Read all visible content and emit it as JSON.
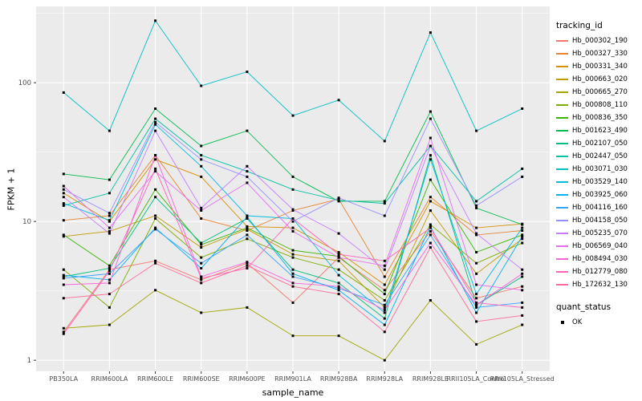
{
  "figure": {
    "ylabel": "FPKM + 1",
    "xlabel": "sample_name",
    "legend_title": "tracking_id",
    "legend2_title": "quant_status",
    "legend2_item": "OK"
  },
  "chart_data": {
    "type": "line",
    "title": "",
    "xlabel": "sample_name",
    "ylabel": "FPKM + 1",
    "y_scale": "log10",
    "y_ticks": [
      1,
      10,
      100
    ],
    "y_tick_labels": [
      "1",
      "10",
      "100"
    ],
    "ylim": [
      0.83,
      355
    ],
    "grid": true,
    "panel_bg": "#EBEBEB",
    "grid_color": "#FFFFFF",
    "point_color": "#000000",
    "point_shape": "square",
    "legend_position": "right",
    "categories": [
      "PB350LA",
      "RRIM600LA",
      "RRIM600LE",
      "RRIM600SE",
      "RRIM600PE",
      "RRIM901LA",
      "RRIM928BA",
      "RRIM928LA",
      "RRIM928LE",
      "RRII105LA_Control",
      "RRII105LA_Stressed"
    ],
    "series": [
      {
        "name": "Hb_000302_190",
        "color": "#F8766D",
        "values": [
          1.6,
          4.5,
          5.2,
          3.8,
          5.0,
          2.6,
          5.5,
          3.2,
          8.5,
          2.8,
          3.4
        ]
      },
      {
        "name": "Hb_000327_330",
        "color": "#EA8331",
        "values": [
          10.2,
          11.0,
          30.0,
          10.5,
          8.6,
          12.0,
          14.5,
          4.0,
          15.0,
          8.0,
          8.6
        ]
      },
      {
        "name": "Hb_000331_340",
        "color": "#D89000",
        "values": [
          16.0,
          10.0,
          28.0,
          21.0,
          9.2,
          9.0,
          6.0,
          3.5,
          14.0,
          9.0,
          9.6
        ]
      },
      {
        "name": "Hb_000663_020",
        "color": "#C09B00",
        "values": [
          7.8,
          8.5,
          11.0,
          6.5,
          8.8,
          5.8,
          5.2,
          2.4,
          12.0,
          4.2,
          7.5
        ]
      },
      {
        "name": "Hb_000665_270",
        "color": "#A3A500",
        "values": [
          1.7,
          1.8,
          3.2,
          2.2,
          2.4,
          1.5,
          1.5,
          1.0,
          2.7,
          1.3,
          1.8
        ]
      },
      {
        "name": "Hb_000808_110",
        "color": "#7CAE00",
        "values": [
          4.5,
          2.4,
          10.5,
          5.5,
          7.5,
          5.5,
          4.5,
          2.7,
          9.5,
          5.0,
          7.0
        ]
      },
      {
        "name": "Hb_000836_350",
        "color": "#39B600",
        "values": [
          8.0,
          4.8,
          17.0,
          6.8,
          9.0,
          6.2,
          5.6,
          3.0,
          20.0,
          6.0,
          8.0
        ]
      },
      {
        "name": "Hb_001623_490",
        "color": "#00BB4E",
        "values": [
          22.0,
          20.0,
          65.0,
          35.0,
          45.0,
          21.0,
          14.0,
          14.0,
          62.0,
          12.5,
          9.5
        ]
      },
      {
        "name": "Hb_002107_050",
        "color": "#00BF7D",
        "values": [
          4.0,
          4.6,
          15.0,
          7.0,
          10.5,
          4.5,
          3.6,
          2.0,
          30.0,
          2.5,
          4.0
        ]
      },
      {
        "name": "Hb_002447_050",
        "color": "#00C1A3",
        "values": [
          13.0,
          16.0,
          55.0,
          30.0,
          23.0,
          17.0,
          14.2,
          13.5,
          35.0,
          14.0,
          24.0
        ]
      },
      {
        "name": "Hb_003071_030",
        "color": "#00BFC4",
        "values": [
          85,
          45,
          280,
          95,
          120,
          58,
          75,
          38,
          230,
          45,
          65
        ]
      },
      {
        "name": "Hb_003529_140",
        "color": "#00BAE0",
        "values": [
          13.5,
          10.2,
          50.0,
          25.0,
          11.0,
          10.5,
          4.1,
          2.2,
          28.0,
          3.0,
          9.0
        ]
      },
      {
        "name": "Hb_003925_060",
        "color": "#00B0F6",
        "values": [
          4.1,
          3.8,
          9.0,
          4.6,
          10.8,
          4.2,
          3.2,
          1.8,
          9.2,
          2.2,
          7.8
        ]
      },
      {
        "name": "Hb_004116_160",
        "color": "#35A2FF",
        "values": [
          3.9,
          4.2,
          8.8,
          5.0,
          8.0,
          4.0,
          3.3,
          2.5,
          8.0,
          2.4,
          2.6
        ]
      },
      {
        "name": "Hb_004158_050",
        "color": "#9590FF",
        "values": [
          17.0,
          11.5,
          52.0,
          28.0,
          21.0,
          10.0,
          14.8,
          11.0,
          55.0,
          13.0,
          21.0
        ]
      },
      {
        "name": "Hb_005235_070",
        "color": "#C77CFF",
        "values": [
          15.0,
          8.2,
          45.0,
          12.5,
          25.0,
          12.2,
          8.2,
          4.5,
          35.0,
          8.2,
          4.5
        ]
      },
      {
        "name": "Hb_006569_040",
        "color": "#E76BF3",
        "values": [
          18.0,
          9.0,
          23.0,
          12.0,
          19.0,
          8.5,
          5.5,
          4.8,
          40.0,
          3.5,
          3.2
        ]
      },
      {
        "name": "Hb_008494_030",
        "color": "#FA62DB",
        "values": [
          3.5,
          3.6,
          30.0,
          4.0,
          5.1,
          3.6,
          3.4,
          2.3,
          7.0,
          2.5,
          4.2
        ]
      },
      {
        "name": "Hb_012779_080",
        "color": "#FF62BC",
        "values": [
          1.55,
          4.4,
          24.0,
          3.9,
          4.6,
          10.5,
          5.8,
          5.2,
          9.0,
          2.6,
          2.4
        ]
      },
      {
        "name": "Hb_172632_130",
        "color": "#FF6A98",
        "values": [
          2.8,
          3.0,
          5.0,
          3.6,
          4.8,
          3.4,
          3.0,
          1.6,
          6.5,
          1.9,
          2.1
        ]
      }
    ]
  }
}
